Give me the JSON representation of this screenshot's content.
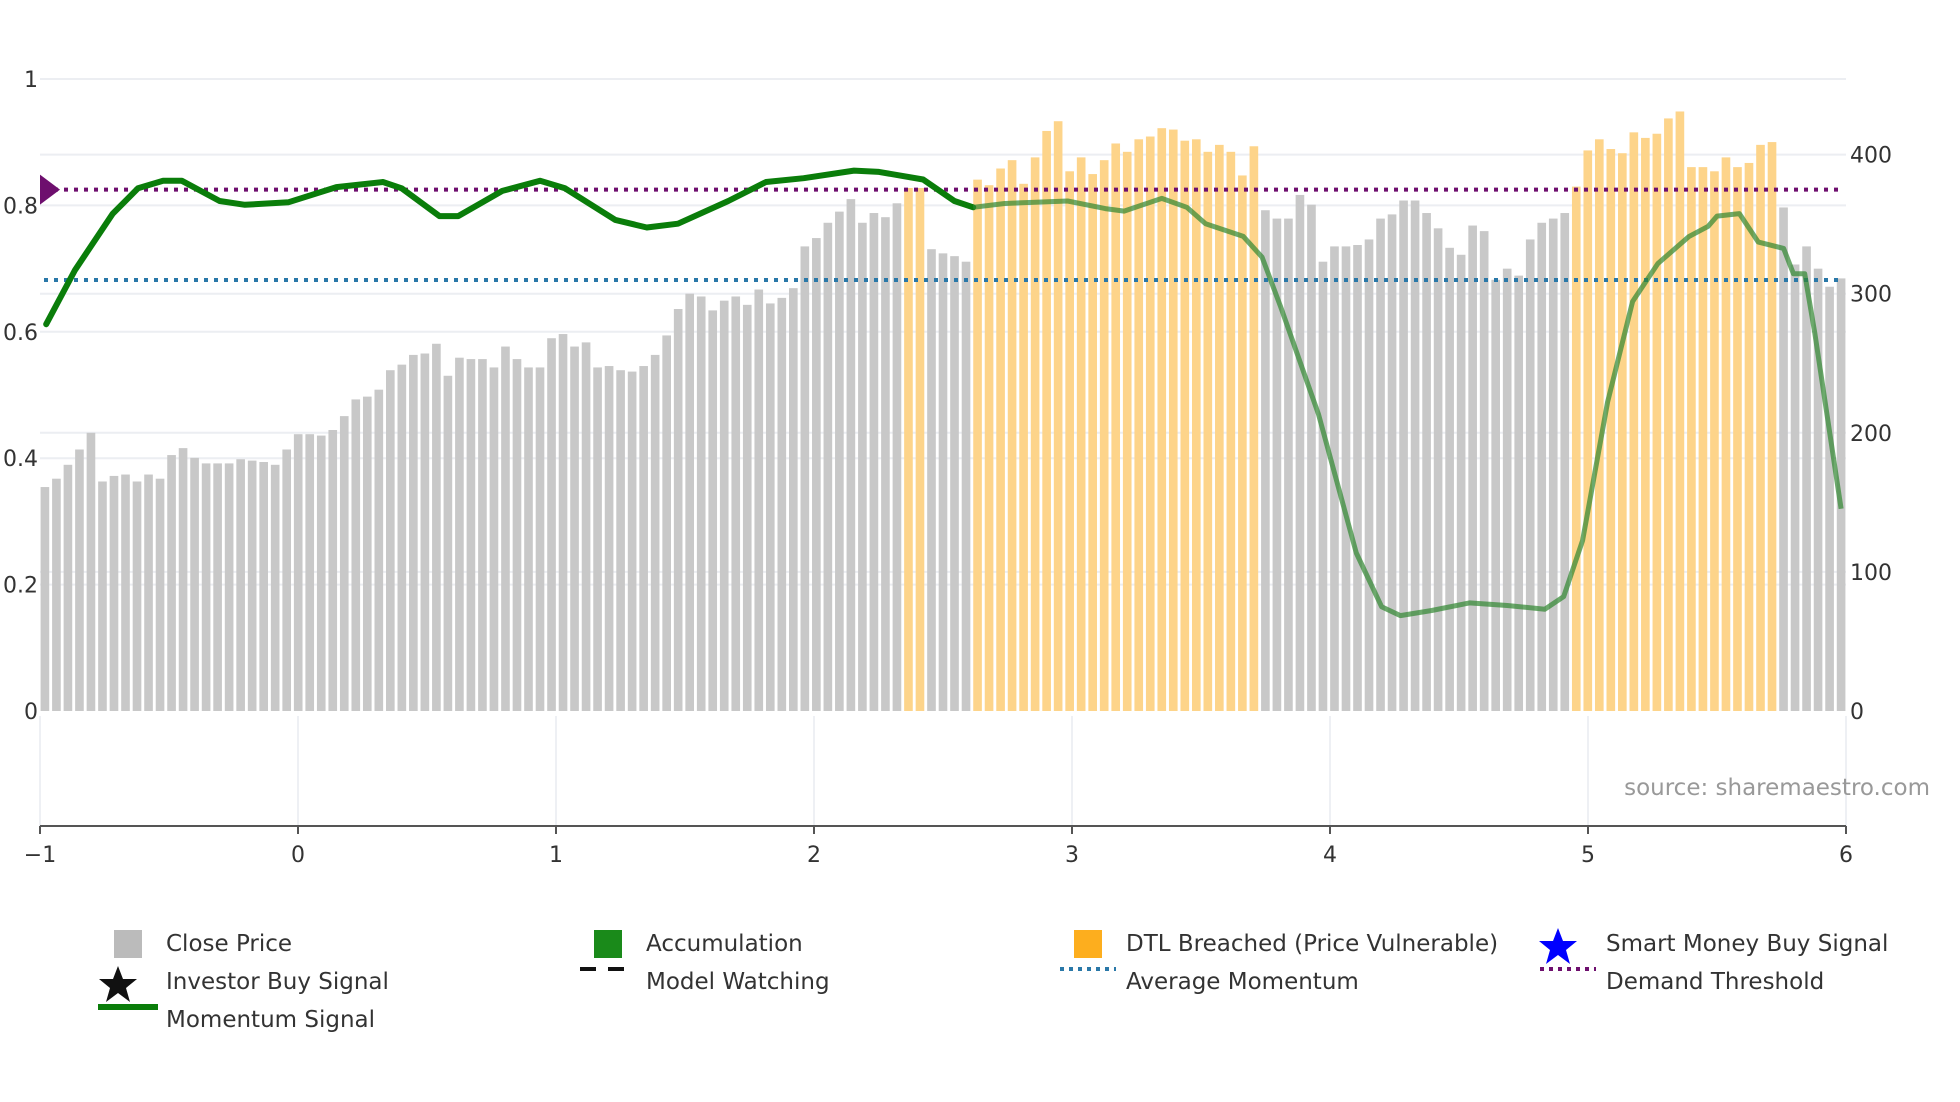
{
  "chart_data": {
    "type": "bar",
    "source": "source: sharemaestro.com",
    "x_ticks": [
      "−1",
      "0",
      "1",
      "2",
      "3",
      "4",
      "5",
      "6"
    ],
    "xlim": [
      -1,
      6
    ],
    "left_axis": {
      "ticks": [
        "0",
        "0.2",
        "0.4",
        "0.6",
        "0.8",
        "1"
      ],
      "ylim": [
        0,
        1
      ]
    },
    "right_axis": {
      "ticks": [
        "0",
        "100",
        "200",
        "300",
        "400"
      ],
      "ylim": [
        0,
        455
      ]
    },
    "price_bars": {
      "x_start": -0.981,
      "x_end": 5.981,
      "values": [
        161,
        167,
        177,
        188,
        200,
        165,
        169,
        170,
        165,
        170,
        167,
        184,
        189,
        182,
        178,
        178,
        178,
        181,
        180,
        179,
        177,
        188,
        199,
        199,
        198,
        202,
        212,
        224,
        226,
        231,
        245,
        249,
        256,
        257,
        264,
        241,
        254,
        253,
        253,
        247,
        262,
        253,
        247,
        247,
        268,
        271,
        262,
        265,
        247,
        248,
        245,
        244,
        248,
        256,
        270,
        289,
        300,
        298,
        288,
        295,
        298,
        292,
        303,
        293,
        297,
        304,
        334,
        340,
        351,
        359,
        368,
        351,
        358,
        355,
        365,
        376,
        376,
        332,
        329,
        327,
        323,
        382,
        378,
        390,
        396,
        379,
        398,
        417,
        424,
        388,
        398,
        386,
        396,
        408,
        402,
        411,
        413,
        419,
        418,
        410,
        411,
        402,
        407,
        402,
        385,
        406,
        360,
        354,
        354,
        371,
        364,
        323,
        334,
        334,
        335,
        339,
        354,
        357,
        367,
        367,
        358,
        347,
        333,
        328,
        349,
        345,
        310,
        318,
        313,
        339,
        351,
        354,
        358,
        377,
        403,
        411,
        404,
        401,
        416,
        412,
        415,
        426,
        431,
        391,
        391,
        388,
        398,
        391,
        394,
        407,
        409,
        362,
        321,
        334,
        318,
        305,
        311
      ],
      "dtl_breached_index_ranges": [
        [
          75,
          76
        ],
        [
          81,
          105
        ],
        [
          133,
          150
        ]
      ]
    },
    "momentum_signal": {
      "x": [
        -0.976,
        -0.864,
        -0.718,
        -0.62,
        -0.523,
        -0.45,
        -0.377,
        -0.304,
        -0.206,
        -0.036,
        0.149,
        0.329,
        0.402,
        0.548,
        0.621,
        0.792,
        0.938,
        1.035,
        1.23,
        1.352,
        1.473,
        1.668,
        1.814,
        1.96,
        2.155,
        2.252,
        2.423,
        2.544,
        2.617,
        2.739,
        2.983,
        3.129,
        3.202,
        3.348,
        3.445,
        3.518,
        3.664,
        3.737,
        3.81,
        3.956,
        4.102,
        4.2,
        4.273,
        4.394,
        4.54,
        4.687,
        4.833,
        4.906,
        4.979,
        5.076,
        5.173,
        5.271,
        5.392,
        5.466,
        5.5,
        5.587,
        5.66,
        5.758,
        5.796,
        5.84,
        5.879,
        5.981
      ],
      "y": [
        0.612,
        0.698,
        0.787,
        0.827,
        0.839,
        0.839,
        0.823,
        0.807,
        0.801,
        0.805,
        0.829,
        0.837,
        0.827,
        0.783,
        0.783,
        0.823,
        0.839,
        0.827,
        0.777,
        0.765,
        0.771,
        0.807,
        0.837,
        0.843,
        0.855,
        0.853,
        0.841,
        0.807,
        0.797,
        0.803,
        0.807,
        0.795,
        0.791,
        0.811,
        0.797,
        0.771,
        0.751,
        0.718,
        0.638,
        0.469,
        0.25,
        0.165,
        0.151,
        0.159,
        0.171,
        0.167,
        0.161,
        0.181,
        0.27,
        0.489,
        0.648,
        0.708,
        0.751,
        0.767,
        0.783,
        0.787,
        0.742,
        0.732,
        0.692,
        0.692,
        0.598,
        0.32
      ]
    },
    "demand_threshold": 0.825,
    "average_momentum": 0.682,
    "legend": [
      {
        "label": "Close Price",
        "icon": "grey-square"
      },
      {
        "label": "Accumulation",
        "icon": "green-square"
      },
      {
        "label": "DTL Breached (Price Vulnerable)",
        "icon": "orange-square"
      },
      {
        "label": "Smart Money Buy Signal",
        "icon": "blue-star"
      },
      {
        "label": "Investor Buy Signal",
        "icon": "black-star"
      },
      {
        "label": "Model Watching",
        "icon": "black-dashed-line"
      },
      {
        "label": "Average Momentum",
        "icon": "blue-dotted-line"
      },
      {
        "label": "Demand Threshold",
        "icon": "purple-dotted-line"
      },
      {
        "label": "Momentum Signal",
        "icon": "green-line"
      }
    ],
    "colors": {
      "close_price": "#c8c8c8",
      "dtl_breached": "#fdd48a",
      "accumulation": "#1a8a1a",
      "momentum": "#0a7d0a",
      "average_momentum": "#2a78a8",
      "demand_threshold": "#6e0f6e",
      "smart_money": "#0000ff"
    }
  }
}
